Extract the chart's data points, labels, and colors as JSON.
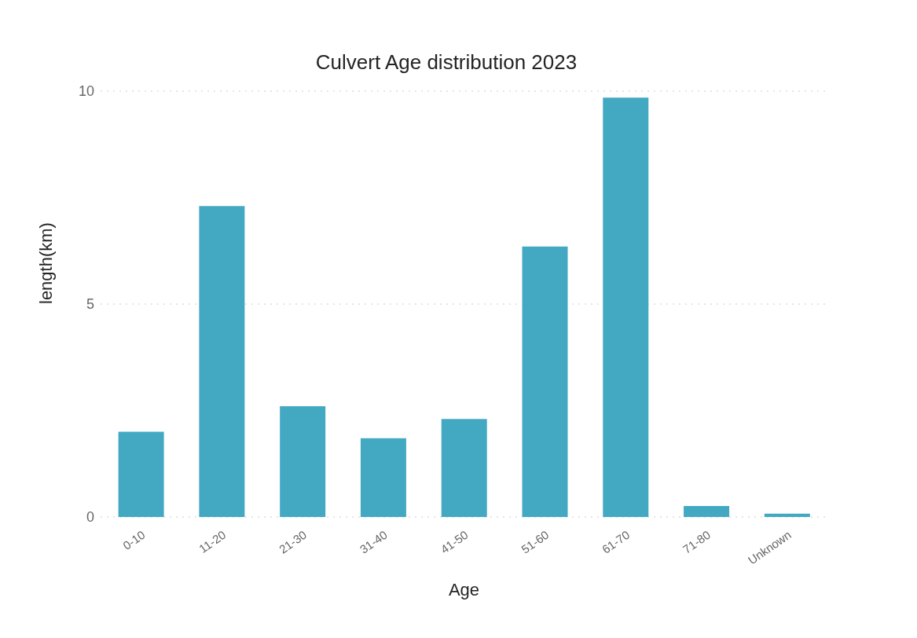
{
  "chart_data": {
    "type": "bar",
    "title": "Culvert Age distribution 2023",
    "xlabel": "Age",
    "ylabel": "length(km)",
    "categories": [
      "0-10",
      "11-20",
      "21-30",
      "31-40",
      "41-50",
      "51-60",
      "61-70",
      "71-80",
      "Unknown"
    ],
    "values": [
      2.0,
      7.3,
      2.6,
      1.85,
      2.3,
      6.35,
      9.85,
      0.26,
      0.08
    ],
    "color": "#43a9c3",
    "ylim": [
      0,
      10
    ],
    "yticks": [
      0,
      5,
      10
    ],
    "grid": "y",
    "legend": false
  }
}
